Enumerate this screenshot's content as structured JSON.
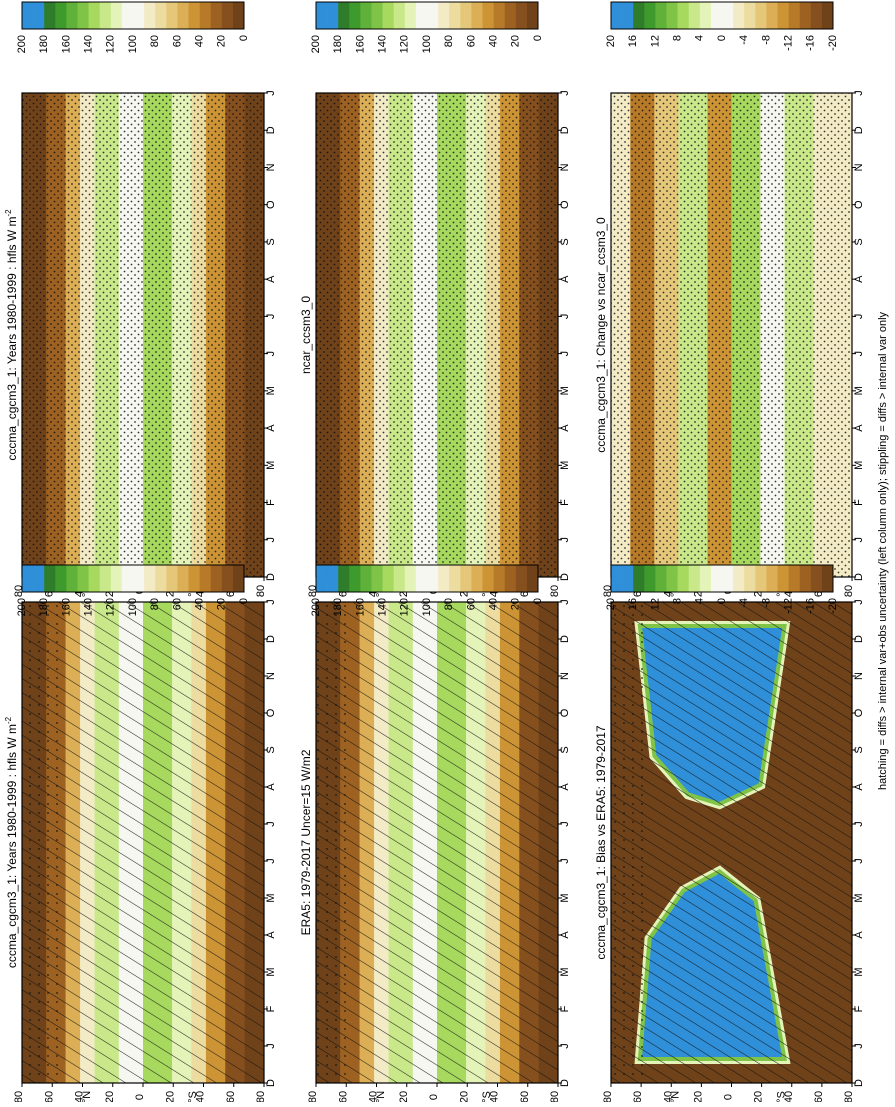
{
  "figure": {
    "footer": "hatching = diffs > internal var+obs uncertainty (left column only); stippling = diffs > internal var only"
  },
  "axes": {
    "month_ticks": [
      "D",
      "J",
      "F",
      "M",
      "A",
      "M",
      "J",
      "J",
      "A",
      "S",
      "O",
      "N",
      "D",
      "J"
    ],
    "lat_ticks": [
      "80",
      "60",
      "40",
      "20",
      "0",
      "20",
      "40",
      "60",
      "80"
    ],
    "lat_tick_values": [
      -80,
      -60,
      -40,
      -20,
      0,
      20,
      40,
      60,
      80
    ],
    "lat_hemisphere_labels": {
      "north": "°N",
      "south": "°S"
    }
  },
  "colorbars": {
    "absolute": {
      "labels": [
        "200",
        "180",
        "160",
        "140",
        "120",
        "100",
        "80",
        "60",
        "40",
        "20",
        "0"
      ],
      "colors": [
        "#2f8fd8",
        "#2f8fd8",
        "#2f7d2a",
        "#3f9a2e",
        "#5fb13a",
        "#80c447",
        "#a6d95e",
        "#c8e889",
        "#e4f3b8",
        "#f7f7f2",
        "#f7f7f2",
        "#f3ebc6",
        "#ecdca0",
        "#e5c77a",
        "#dcaf56",
        "#cd9436",
        "#b77a28",
        "#9d6222",
        "#86501e",
        "#6f4219"
      ]
    },
    "difference": {
      "labels": [
        "20",
        "16",
        "12",
        "8",
        "4",
        "0",
        "-4",
        "-8",
        "-12",
        "-16",
        "-20"
      ],
      "colors": [
        "#2f8fd8",
        "#2f8fd8",
        "#2f7d2a",
        "#3f9a2e",
        "#5fb13a",
        "#80c447",
        "#a6d95e",
        "#c8e889",
        "#e4f3b8",
        "#f7f7f2",
        "#f7f7f2",
        "#f3ebc6",
        "#ecdca0",
        "#e5c77a",
        "#dcaf56",
        "#cd9436",
        "#b77a28",
        "#9d6222",
        "#86501e",
        "#6f4219"
      ]
    }
  },
  "panels": [
    {
      "id": "left-top",
      "title": "cccma_cgcm3_1: Years 1980-1999 : hfls W m",
      "title_sup": "-2",
      "colorbar": "absolute",
      "hatch": "moderate",
      "stipple": "sparse"
    },
    {
      "id": "left-middle",
      "title": "ERA5: 1979-2017 Uncer=15 W/m2",
      "title_sup": "",
      "colorbar": "absolute",
      "hatch": "moderate",
      "stipple": "sparse"
    },
    {
      "id": "left-bottom",
      "title": "cccma_cgcm3_1: Bias vs ERA5: 1979-2017",
      "title_sup": "",
      "colorbar": "difference",
      "hatch": "dense",
      "stipple": "edge"
    },
    {
      "id": "right-top",
      "title": "cccma_cgcm3_1: Years 1980-1999 : hfls W m",
      "title_sup": "-2",
      "colorbar": "absolute",
      "hatch": "none",
      "stipple": "dense"
    },
    {
      "id": "right-middle",
      "title": "ncar_ccsm3_0",
      "title_sup": "",
      "colorbar": "absolute",
      "hatch": "none",
      "stipple": "dense"
    },
    {
      "id": "right-bottom",
      "title": "cccma_cgcm3_1: Change vs ncar_ccsm3_0",
      "title_sup": "",
      "colorbar": "difference",
      "hatch": "none",
      "stipple": "dense"
    }
  ],
  "chart_data": [
    {
      "type": "heatmap",
      "title": "cccma_cgcm3_1: Years 1980-1999 : hfls W m-2",
      "x_categories": [
        "D",
        "J",
        "F",
        "M",
        "A",
        "M",
        "J",
        "J",
        "A",
        "S",
        "O",
        "N",
        "D",
        "J"
      ],
      "y_lat": [
        -80,
        -60,
        -40,
        -20,
        0,
        20,
        40,
        60,
        80
      ],
      "zlim": [
        0,
        200
      ],
      "z_by_lat": {
        "-80": 2,
        "-60": 20,
        "-40": 90,
        "-20": 125,
        "0": 105,
        "20": 120,
        "40": 85,
        "60": 25,
        "80": 4
      }
    },
    {
      "type": "heatmap",
      "title": "ERA5: 1979-2017 Uncer=15 W/m2",
      "x_categories": [
        "D",
        "J",
        "F",
        "M",
        "A",
        "M",
        "J",
        "J",
        "A",
        "S",
        "O",
        "N",
        "D",
        "J"
      ],
      "y_lat": [
        -80,
        -60,
        -40,
        -20,
        0,
        20,
        40,
        60,
        80
      ],
      "zlim": [
        0,
        200
      ],
      "z_by_lat": {
        "-80": 2,
        "-60": 18,
        "-40": 95,
        "-20": 140,
        "0": 135,
        "20": 140,
        "40": 85,
        "60": 22,
        "80": 4
      }
    },
    {
      "type": "heatmap",
      "title": "cccma_cgcm3_1: Bias vs ERA5: 1979-2017",
      "x_categories": [
        "D",
        "J",
        "F",
        "M",
        "A",
        "M",
        "J",
        "J",
        "A",
        "S",
        "O",
        "N",
        "D",
        "J"
      ],
      "y_lat": [
        -80,
        -60,
        -40,
        -20,
        0,
        20,
        40,
        60,
        80
      ],
      "zlim": [
        -20,
        20
      ],
      "z_description_values": {
        "tropics_winter_summer": 20,
        "extratropics": -20,
        "boundary": 0
      }
    },
    {
      "type": "heatmap",
      "title": "cccma_cgcm3_1: Years 1980-1999 : hfls W m-2",
      "x_categories": [
        "D",
        "J",
        "F",
        "M",
        "A",
        "M",
        "J",
        "J",
        "A",
        "S",
        "O",
        "N",
        "D",
        "J"
      ],
      "y_lat": [
        -80,
        -60,
        -40,
        -20,
        0,
        20,
        40,
        60,
        80
      ],
      "zlim": [
        0,
        200
      ]
    },
    {
      "type": "heatmap",
      "title": "ncar_ccsm3_0",
      "x_categories": [
        "D",
        "J",
        "F",
        "M",
        "A",
        "M",
        "J",
        "J",
        "A",
        "S",
        "O",
        "N",
        "D",
        "J"
      ],
      "y_lat": [
        -80,
        -60,
        -40,
        -20,
        0,
        20,
        40,
        60,
        80
      ],
      "zlim": [
        0,
        200
      ],
      "z_by_lat": {
        "-80": 2,
        "-60": 20,
        "-40": 88,
        "-20": 130,
        "0": 120,
        "20": 128,
        "40": 85,
        "60": 22,
        "80": 4
      }
    },
    {
      "type": "heatmap",
      "title": "cccma_cgcm3_1: Change vs ncar_ccsm3_0",
      "x_categories": [
        "D",
        "J",
        "F",
        "M",
        "A",
        "M",
        "J",
        "J",
        "A",
        "S",
        "O",
        "N",
        "D",
        "J"
      ],
      "y_lat": [
        -80,
        -60,
        -40,
        -20,
        0,
        20,
        40,
        60,
        80
      ],
      "zlim": [
        -20,
        20
      ],
      "z_range_observed": [
        -20,
        16
      ]
    }
  ]
}
